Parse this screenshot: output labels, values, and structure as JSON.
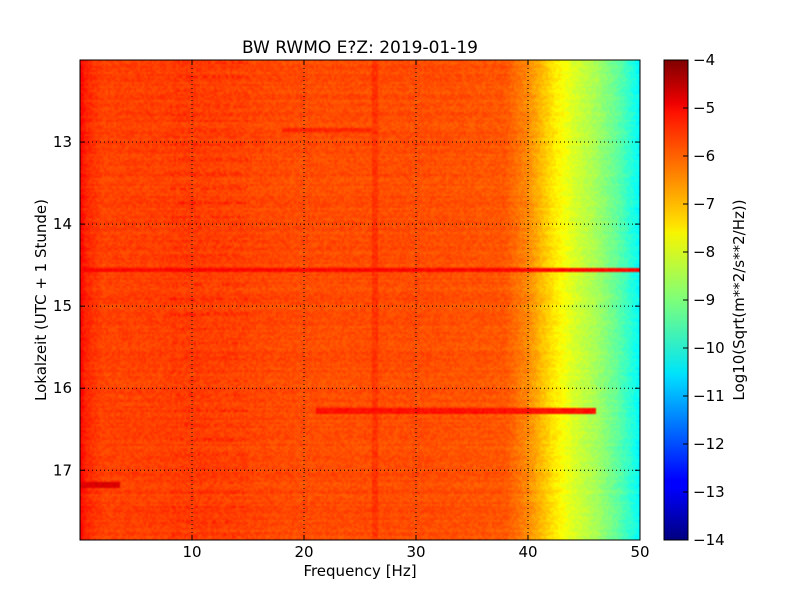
{
  "chart_data": {
    "type": "heatmap",
    "title": "BW RWMO E?Z: 2019-01-19",
    "xlabel": "Frequency [Hz]",
    "ylabel": "Lokalzeit (UTC + 1 Stunde)",
    "xlim": [
      0,
      50
    ],
    "ylim": [
      17.85,
      12.0
    ],
    "x_ticks": [
      10,
      20,
      30,
      40,
      50
    ],
    "y_ticks": [
      13,
      14,
      15,
      16,
      17
    ],
    "grid": true,
    "colorbar": {
      "label": "Log10(Sqrt(m**2/s**2/Hz))",
      "range": [
        -14,
        -4
      ],
      "ticks": [
        -4,
        -5,
        -6,
        -7,
        -8,
        -9,
        -10,
        -11,
        -12,
        -13,
        -14
      ],
      "colormap": "jet"
    },
    "profile": {
      "frequency_hz": [
        0,
        0.5,
        2,
        10,
        20,
        30,
        38,
        40,
        42,
        44,
        46,
        48,
        49.5,
        50
      ],
      "log10_amplitude": [
        -5.2,
        -5.6,
        -5.9,
        -5.85,
        -6.0,
        -6.0,
        -6.1,
        -6.6,
        -7.4,
        -8.1,
        -8.6,
        -9.3,
        -10.0,
        -10.3
      ]
    },
    "features": [
      {
        "time": 14.55,
        "f_start": 0,
        "f_end": 50,
        "log10_amplitude": -5.3
      },
      {
        "time": 16.28,
        "f_start": 21,
        "f_end": 46,
        "log10_amplitude": -5.4
      },
      {
        "time": 17.18,
        "f_start": 0,
        "f_end": 3.5,
        "log10_amplitude": -4.9
      },
      {
        "time": 12.85,
        "f_start": 18,
        "f_end": 26,
        "log10_amplitude": -5.6
      }
    ]
  }
}
